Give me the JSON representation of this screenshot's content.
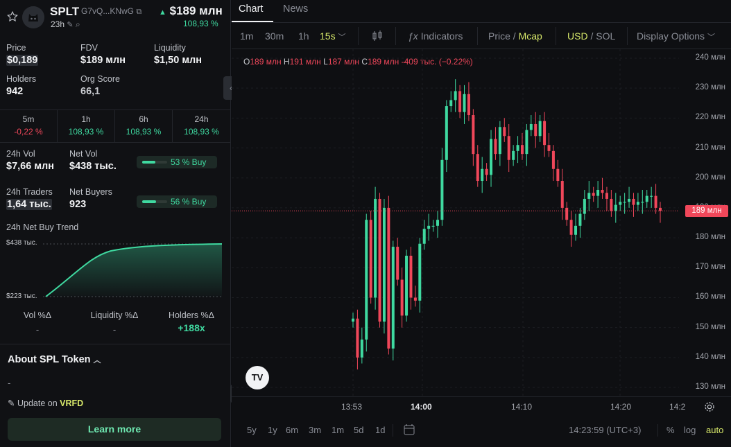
{
  "header": {
    "symbol": "SPLT",
    "address": "G7vQ...KNwG",
    "age": "23h",
    "price": "$189 млн",
    "change": "108,93 %"
  },
  "stats": [
    {
      "label": "Price",
      "value": "$0,189"
    },
    {
      "label": "FDV",
      "value": "$189 млн"
    },
    {
      "label": "Liquidity",
      "value": "$1,50 млн"
    },
    {
      "label": "Holders",
      "value": "942"
    },
    {
      "label": "Org Score",
      "value": "66,1"
    }
  ],
  "timeframes": [
    {
      "label": "5m",
      "value": "-0,22 %",
      "dir": "down"
    },
    {
      "label": "1h",
      "value": "108,93 %",
      "dir": "up"
    },
    {
      "label": "6h",
      "value": "108,93 %",
      "dir": "up"
    },
    {
      "label": "24h",
      "value": "108,93 %",
      "dir": "up"
    }
  ],
  "volume": {
    "vol_label": "24h Vol",
    "vol_value": "$7,66 млн",
    "net_label": "Net Vol",
    "net_value": "$438 тыс.",
    "buy_pct": 53,
    "buy_text": "53 % Buy"
  },
  "traders": {
    "traders_label": "24h Traders",
    "traders_value": "1,64 тыс.",
    "buyers_label": "Net Buyers",
    "buyers_value": "923",
    "buy_pct": 56,
    "buy_text": "56 % Buy"
  },
  "trend": {
    "title": "24h Net Buy Trend",
    "max_label": "$438 тыс.",
    "min_label": "$223 тыс."
  },
  "deltas": [
    {
      "label": "Vol %Δ",
      "value": "-"
    },
    {
      "label": "Liquidity %Δ",
      "value": "-"
    },
    {
      "label": "Holders %Δ",
      "value": "+188x"
    }
  ],
  "about": {
    "title": "About SPL Token",
    "desc": "-",
    "update_prefix": "Update on",
    "update_link": "VRFD",
    "learn_more": "Learn more"
  },
  "tabs": [
    "Chart",
    "News"
  ],
  "toolbar": {
    "intervals": [
      "1m",
      "30m",
      "1h",
      "15s"
    ],
    "active_interval": "15s",
    "indicators": "Indicators",
    "price": "Price",
    "mcap": "Mcap",
    "usd": "USD",
    "sol": "SOL",
    "display": "Display Options"
  },
  "ohlc": {
    "o": "189 млн",
    "h": "191 млн",
    "l": "187 млн",
    "c": "189 млн",
    "change": "-409 тыс. (−0.22%)"
  },
  "chart_data": {
    "type": "candlestick",
    "y_ticks": [
      "240 млн",
      "230 млн",
      "220 млн",
      "210 млн",
      "200 млн",
      "190 млн",
      "180 млн",
      "170 млн",
      "160 млн",
      "150 млн",
      "140 млн",
      "130 млн"
    ],
    "x_ticks": [
      "13:53",
      "14:00",
      "14:10",
      "14:20",
      "14:2"
    ],
    "current_price_label": "189 млн",
    "current_price": 189,
    "ylim": [
      127,
      243
    ],
    "series_close": [
      153,
      140,
      146,
      186,
      160,
      193,
      152,
      190,
      143,
      177,
      166,
      154,
      174,
      160,
      159,
      178,
      183,
      184,
      184,
      186,
      206,
      224,
      226,
      229,
      222,
      228,
      221,
      208,
      199,
      203,
      201,
      213,
      208,
      217,
      214,
      206,
      209,
      211,
      208,
      216,
      218,
      214,
      219,
      211,
      209,
      203,
      199,
      190,
      186,
      181,
      184,
      188,
      193,
      195,
      194,
      196,
      195,
      193,
      189,
      191,
      192,
      192,
      193,
      191,
      192,
      192,
      194,
      194,
      190,
      189
    ]
  },
  "bottom": {
    "ranges": [
      "5y",
      "1y",
      "6m",
      "3m",
      "1m",
      "5d",
      "1d"
    ],
    "time": "14:23:59 (UTC+3)",
    "pct": "%",
    "log": "log",
    "auto": "auto"
  }
}
